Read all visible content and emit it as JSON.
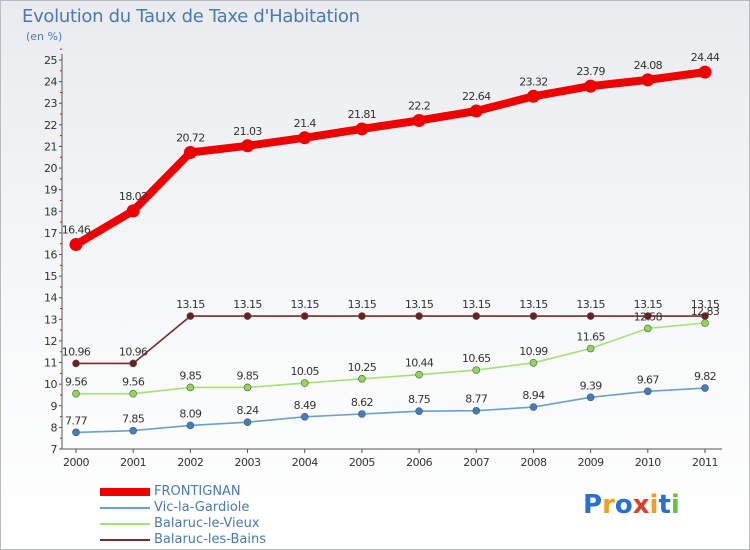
{
  "title": "Evolution du Taux de Taxe d'Habitation",
  "unit_label": "(en %)",
  "brand": {
    "logo": "Proxiti"
  },
  "colors": {
    "axis_text": "#333333",
    "title_text": "#4a79b8",
    "tick_red": "#ff0000"
  },
  "chart_data": {
    "type": "line",
    "title": "Evolution du Taux de Taxe d'Habitation",
    "ylabel": "(en %)",
    "xlabel": "",
    "x": [
      "2000",
      "2001",
      "2002",
      "2003",
      "2004",
      "2005",
      "2006",
      "2007",
      "2008",
      "2009",
      "2010",
      "2011"
    ],
    "ylim": [
      7,
      25
    ],
    "yticks": [
      "7",
      "8",
      "9",
      "10",
      "11",
      "12",
      "13",
      "14",
      "15",
      "16",
      "17",
      "18",
      "19",
      "20",
      "21",
      "22",
      "23",
      "24",
      "25"
    ],
    "grid": false,
    "legend_position": "bottom-left",
    "series": [
      {
        "name": "FRONTIGNAN",
        "color": "#ee0000",
        "marker_color": "#ee0000",
        "values": [
          16.46,
          18.02,
          20.72,
          21.03,
          21.4,
          21.81,
          22.2,
          22.64,
          23.32,
          23.79,
          24.08,
          24.44
        ],
        "labels": [
          "16.46",
          "18.02",
          "20.72",
          "21.03",
          "21.4",
          "21.81",
          "22.2",
          "22.64",
          "23.32",
          "23.79",
          "24.08",
          "24.44"
        ]
      },
      {
        "name": "Vic-la-Gardiole",
        "color": "#6a9fd4",
        "marker_color": "#3f7fc1",
        "values": [
          7.77,
          7.85,
          8.09,
          8.24,
          8.49,
          8.62,
          8.75,
          8.77,
          8.94,
          9.39,
          9.67,
          9.82
        ],
        "labels": [
          "7.77",
          "7.85",
          "8.09",
          "8.24",
          "8.49",
          "8.62",
          "8.75",
          "8.77",
          "8.94",
          "9.39",
          "9.67",
          "9.82"
        ]
      },
      {
        "name": "Balaruc-le-Vieux",
        "color": "#a6e07a",
        "marker_color": "#8fd65a",
        "values": [
          9.56,
          9.56,
          9.85,
          9.85,
          10.05,
          10.25,
          10.44,
          10.65,
          10.99,
          11.65,
          12.58,
          12.83
        ],
        "labels": [
          "9.56",
          "9.56",
          "9.85",
          "9.85",
          "10.05",
          "10.25",
          "10.44",
          "10.65",
          "10.99",
          "11.65",
          "12.58",
          "12.83"
        ]
      },
      {
        "name": "Balaruc-les-Bains",
        "color": "#7a2a2a",
        "marker_color": "#6b1f1f",
        "values": [
          10.96,
          10.96,
          13.15,
          13.15,
          13.15,
          13.15,
          13.15,
          13.15,
          13.15,
          13.15,
          13.15,
          13.15
        ],
        "labels": [
          "10.96",
          "10.96",
          "13.15",
          "13.15",
          "13.15",
          "13.15",
          "13.15",
          "13.15",
          "13.15",
          "13.15",
          "13.15",
          "13.15"
        ]
      }
    ]
  }
}
